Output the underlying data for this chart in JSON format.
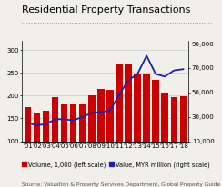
{
  "title": "Residential Property Transactions",
  "years": [
    "'01",
    "'02",
    "'03",
    "'04",
    "'05",
    "'06",
    "'07",
    "'08",
    "'09",
    "'10",
    "'11",
    "'12",
    "'13",
    "'14",
    "'15",
    "'16",
    "'17",
    "'18"
  ],
  "volume": [
    175,
    163,
    166,
    197,
    180,
    181,
    181,
    200,
    215,
    213,
    268,
    270,
    247,
    246,
    235,
    206,
    197,
    199
  ],
  "value": [
    25000,
    23000,
    24000,
    28000,
    28000,
    27000,
    30000,
    33000,
    34000,
    35000,
    48000,
    60000,
    65000,
    80000,
    65000,
    63000,
    68000,
    69000
  ],
  "bar_color": "#cc0000",
  "line_color": "#2020aa",
  "ylim_left": [
    100,
    320
  ],
  "ylim_right": [
    10000,
    92000
  ],
  "yticks_left": [
    100,
    150,
    200,
    250,
    300
  ],
  "yticks_right": [
    10000,
    30000,
    50000,
    70000,
    90000
  ],
  "ytick_labels_right": [
    "10,000",
    "30,000",
    "50,000",
    "70,000",
    "90,000"
  ],
  "source": "Source: Valuation & Property Services Department, Global Property Guide",
  "legend_volume": "Volume, 1,000 (left scale)",
  "legend_value": "Value, MYR million (right scale)",
  "background_color": "#f0efea",
  "title_fontsize": 8.0,
  "tick_fontsize": 5.0,
  "legend_fontsize": 4.8,
  "source_fontsize": 4.2
}
